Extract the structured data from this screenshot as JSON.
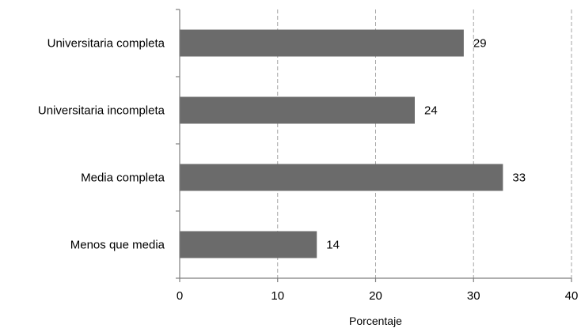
{
  "chart_data": {
    "type": "bar",
    "orientation": "horizontal",
    "categories": [
      "Universitaria completa",
      "Universitaria incompleta",
      "Media completa",
      "Menos que media"
    ],
    "values": [
      29,
      24,
      33,
      14
    ],
    "data_labels": [
      "29",
      "24",
      "33",
      "14"
    ],
    "xlabel": "Porcentaje",
    "ylabel": "",
    "xlim": [
      0,
      40
    ],
    "x_ticks": [
      0,
      10,
      20,
      30,
      40
    ],
    "x_tick_labels": [
      "0",
      "10",
      "20",
      "30",
      "40"
    ],
    "grid": "vertical dashed",
    "legend": "none",
    "bar_color": "#6b6b6b",
    "grid_color": "#a6a6a6",
    "axis_color": "#7f7f7f"
  }
}
